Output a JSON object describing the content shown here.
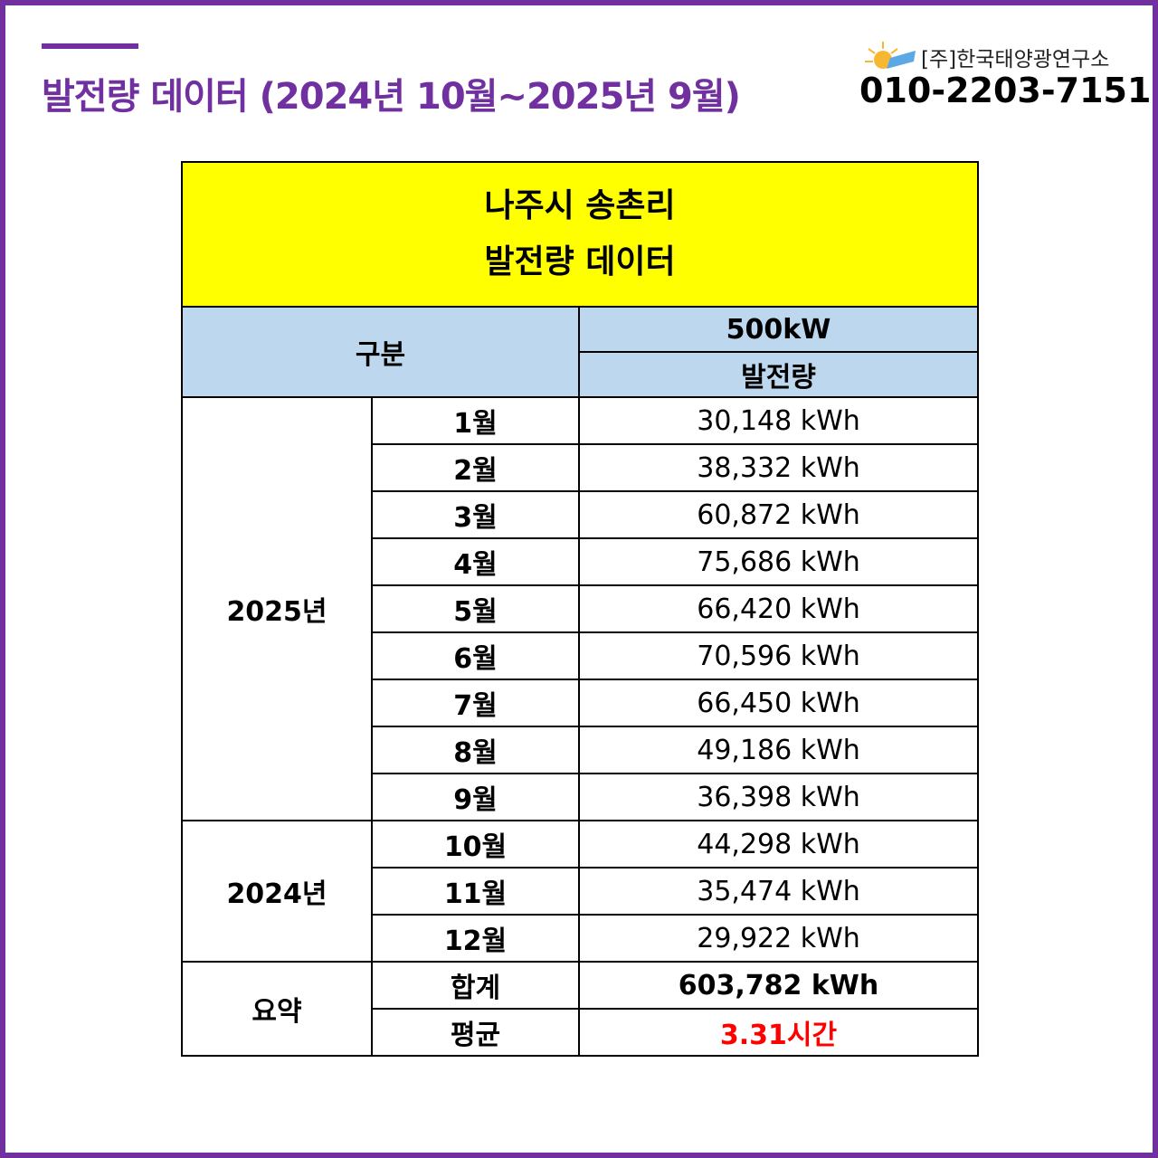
{
  "header": {
    "title": "발전량 데이터 (2024년 10월~2025년 9월)",
    "company": "[주]한국태양광연구소",
    "phone": "010-2203-7151"
  },
  "table": {
    "title_lines": [
      "나주시 송촌리",
      "발전량 데이터"
    ],
    "header": {
      "category": "구분",
      "capacity": "500kW",
      "metric": "발전량"
    },
    "groups": [
      {
        "label": "2025년",
        "rows": [
          [
            "1월",
            "30,148 kWh"
          ],
          [
            "2월",
            "38,332 kWh"
          ],
          [
            "3월",
            "60,872 kWh"
          ],
          [
            "4월",
            "75,686 kWh"
          ],
          [
            "5월",
            "66,420 kWh"
          ],
          [
            "6월",
            "70,596 kWh"
          ],
          [
            "7월",
            "66,450 kWh"
          ],
          [
            "8월",
            "49,186 kWh"
          ],
          [
            "9월",
            "36,398 kWh"
          ]
        ]
      },
      {
        "label": "2024년",
        "rows": [
          [
            "10월",
            "44,298 kWh"
          ],
          [
            "11월",
            "35,474 kWh"
          ],
          [
            "12월",
            "29,922 kWh"
          ]
        ]
      },
      {
        "label": "요약",
        "rows": [
          [
            "합계",
            "603,782 kWh"
          ],
          [
            "평균",
            "3.31시간"
          ]
        ]
      }
    ]
  }
}
